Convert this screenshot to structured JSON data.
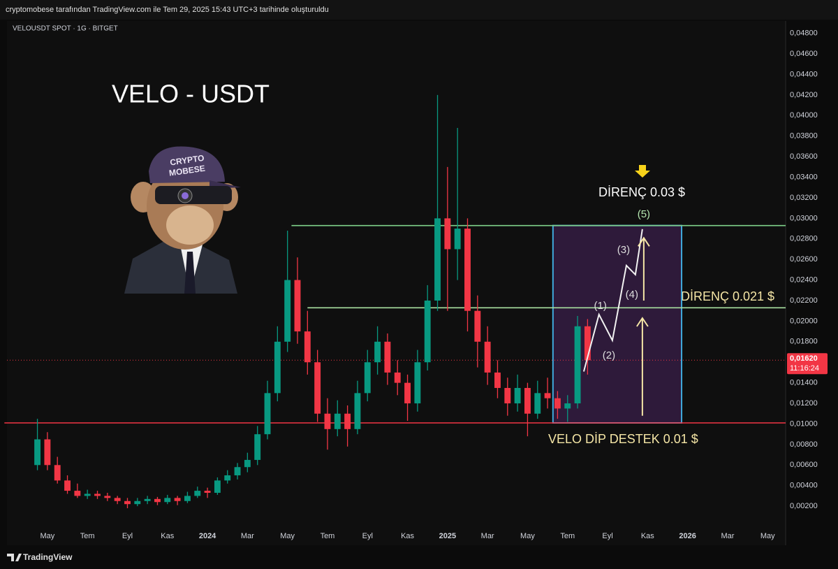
{
  "header": {
    "attribution": "cryptomobese tarafından TradingView.com ile Tem 29, 2025 15:43 UTC+3 tarihinde oluşturuldu",
    "symbol": "VELOUSDT SPOT · 1G · BITGET",
    "logo": "TradingView"
  },
  "chart_data": {
    "type": "candlestick",
    "title": "VELO - USDT",
    "x": [
      3.5,
      4,
      4.5,
      5,
      5.5,
      6,
      6.5,
      7,
      7.5,
      8,
      8.5,
      9,
      9.5,
      10,
      10.5,
      11,
      11.5,
      12,
      12.5,
      13,
      13.5,
      14,
      14.5,
      15,
      15.5,
      16,
      16.5,
      17,
      17.5,
      18,
      18.5,
      19,
      19.5,
      20,
      20.5,
      21,
      21.5,
      22,
      22.5,
      23,
      23.5,
      24,
      24.5,
      25,
      25.5,
      26,
      26.5,
      27,
      27.5,
      28,
      28.5,
      29,
      29.5,
      30,
      30.5,
      31
    ],
    "open": [
      0.006,
      0.0085,
      0.006,
      0.0045,
      0.0035,
      0.003,
      0.0032,
      0.003,
      0.0028,
      0.0025,
      0.0022,
      0.0025,
      0.0027,
      0.0024,
      0.0028,
      0.0025,
      0.003,
      0.0035,
      0.0033,
      0.0045,
      0.005,
      0.0058,
      0.0065,
      0.009,
      0.013,
      0.018,
      0.024,
      0.019,
      0.016,
      0.011,
      0.0095,
      0.011,
      0.0095,
      0.013,
      0.016,
      0.018,
      0.015,
      0.014,
      0.012,
      0.016,
      0.022,
      0.03,
      0.027,
      0.029,
      0.021,
      0.018,
      0.015,
      0.0135,
      0.012,
      0.0135,
      0.011,
      0.013,
      0.0125,
      0.0115,
      0.012,
      0.0195
    ],
    "high": [
      0.0105,
      0.0092,
      0.0068,
      0.005,
      0.0042,
      0.0036,
      0.0035,
      0.0033,
      0.003,
      0.0028,
      0.0028,
      0.003,
      0.0029,
      0.0031,
      0.003,
      0.0034,
      0.0039,
      0.0038,
      0.0048,
      0.0055,
      0.0062,
      0.0072,
      0.0098,
      0.0142,
      0.0195,
      0.0288,
      0.0262,
      0.021,
      0.0172,
      0.0125,
      0.0123,
      0.0118,
      0.0142,
      0.0172,
      0.0195,
      0.0188,
      0.0162,
      0.0148,
      0.0172,
      0.0235,
      0.042,
      0.035,
      0.0388,
      0.03,
      0.0225,
      0.0195,
      0.0162,
      0.0145,
      0.0148,
      0.014,
      0.0142,
      0.0145,
      0.0132,
      0.0128,
      0.0205,
      0.0202
    ],
    "low": [
      0.0055,
      0.0055,
      0.0042,
      0.0032,
      0.0028,
      0.0027,
      0.0027,
      0.0025,
      0.0022,
      0.0018,
      0.002,
      0.0022,
      0.0021,
      0.0022,
      0.0021,
      0.0023,
      0.0028,
      0.0028,
      0.0031,
      0.0042,
      0.0046,
      0.0053,
      0.006,
      0.0085,
      0.0122,
      0.017,
      0.0178,
      0.0148,
      0.0102,
      0.0075,
      0.0088,
      0.0078,
      0.009,
      0.0122,
      0.0148,
      0.0138,
      0.0128,
      0.0103,
      0.0112,
      0.0152,
      0.021,
      0.021,
      0.024,
      0.019,
      0.0155,
      0.0138,
      0.0125,
      0.0108,
      0.0112,
      0.0088,
      0.0105,
      0.0115,
      0.0105,
      0.0102,
      0.0115,
      0.0148
    ],
    "close": [
      0.0085,
      0.006,
      0.0045,
      0.0035,
      0.003,
      0.0032,
      0.003,
      0.0028,
      0.0025,
      0.0022,
      0.0025,
      0.0027,
      0.0024,
      0.0028,
      0.0025,
      0.003,
      0.0035,
      0.0033,
      0.0045,
      0.005,
      0.0058,
      0.0065,
      0.009,
      0.013,
      0.018,
      0.024,
      0.019,
      0.016,
      0.011,
      0.0095,
      0.011,
      0.0095,
      0.013,
      0.016,
      0.018,
      0.015,
      0.014,
      0.012,
      0.016,
      0.022,
      0.03,
      0.027,
      0.029,
      0.021,
      0.018,
      0.015,
      0.0135,
      0.012,
      0.0135,
      0.011,
      0.013,
      0.0125,
      0.0115,
      0.012,
      0.0195,
      0.0162
    ],
    "up_color": "#089981",
    "down_color": "#f23645",
    "xlim": [
      1.63,
      40.9
    ],
    "xticks": [
      {
        "value": 4,
        "label": "May"
      },
      {
        "value": 6,
        "label": "Tem"
      },
      {
        "value": 8,
        "label": "Eyl"
      },
      {
        "value": 10,
        "label": "Kas"
      },
      {
        "value": 12,
        "label": "2024"
      },
      {
        "value": 14,
        "label": "Mar"
      },
      {
        "value": 16,
        "label": "May"
      },
      {
        "value": 18,
        "label": "Tem"
      },
      {
        "value": 20,
        "label": "Eyl"
      },
      {
        "value": 22,
        "label": "Kas"
      },
      {
        "value": 24,
        "label": "2025"
      },
      {
        "value": 26,
        "label": "Mar"
      },
      {
        "value": 28,
        "label": "May"
      },
      {
        "value": 30,
        "label": "Tem"
      },
      {
        "value": 32,
        "label": "Eyl"
      },
      {
        "value": 34,
        "label": "Kas"
      },
      {
        "value": 36,
        "label": "2026"
      },
      {
        "value": 38,
        "label": "Mar"
      },
      {
        "value": 40,
        "label": "May"
      }
    ],
    "ylim": [
      -0.0001,
      0.0492
    ],
    "yticks": [
      {
        "value": 0.002,
        "label": "0,00200"
      },
      {
        "value": 0.004,
        "label": "0,00400"
      },
      {
        "value": 0.006,
        "label": "0,00600"
      },
      {
        "value": 0.008,
        "label": "0,00800"
      },
      {
        "value": 0.01,
        "label": "0,01000"
      },
      {
        "value": 0.012,
        "label": "0,01200"
      },
      {
        "value": 0.014,
        "label": "0,01400"
      },
      {
        "value": 0.018,
        "label": "0,01800"
      },
      {
        "value": 0.02,
        "label": "0,02000"
      },
      {
        "value": 0.022,
        "label": "0,02200"
      },
      {
        "value": 0.024,
        "label": "0,02400"
      },
      {
        "value": 0.026,
        "label": "0,02600"
      },
      {
        "value": 0.028,
        "label": "0,02800"
      },
      {
        "value": 0.03,
        "label": "0,03000"
      },
      {
        "value": 0.032,
        "label": "0,03200"
      },
      {
        "value": 0.034,
        "label": "0,03400"
      },
      {
        "value": 0.036,
        "label": "0,03600"
      },
      {
        "value": 0.038,
        "label": "0,03800"
      },
      {
        "value": 0.04,
        "label": "0,04000"
      },
      {
        "value": 0.042,
        "label": "0,04200"
      },
      {
        "value": 0.044,
        "label": "0,04400"
      },
      {
        "value": 0.046,
        "label": "0,04600"
      },
      {
        "value": 0.048,
        "label": "0,04800"
      }
    ],
    "grid": false,
    "last_price": {
      "value": 0.0162,
      "label": "0,01620"
    },
    "countdown": "11:16:24",
    "levels": [
      {
        "value": 0.0101,
        "x_start": 1.85,
        "color": "#f23645"
      },
      {
        "value": 0.0293,
        "x_start": 16.2,
        "color": "#7fd18a"
      },
      {
        "value": 0.0213,
        "x_start": 17.0,
        "color": "#a8e0a0"
      }
    ],
    "zone": {
      "x": [
        29.27,
        35.7
      ],
      "y": [
        0.0101,
        0.0293
      ],
      "color": "#3fa9dc",
      "fill": "#3a1f4a"
    },
    "wave": {
      "x": [
        30.81,
        31.57,
        32.24,
        32.94,
        33.39,
        33.74
      ],
      "y": [
        0.0151,
        0.02065,
        0.01813,
        0.02541,
        0.02452,
        0.02895
      ],
      "labels": [
        "(1)",
        "(2)",
        "(3)",
        "(4)",
        "(5)"
      ],
      "color": "#f2f2f2"
    },
    "arrows": [
      {
        "x": 33.74,
        "y": [
          0.0108,
          0.0203
        ],
        "color": "#f5e6a6"
      },
      {
        "x": 33.81,
        "y": [
          0.022,
          0.0281
        ],
        "color": "#f5e6a6"
      }
    ],
    "annotations": [
      "DİRENÇ 0.03 $",
      "DİRENÇ 0.021 $",
      "VELO DİP DESTEK 0.01 $"
    ],
    "avatar_text": [
      "CRYPTO",
      "MOBESE"
    ]
  }
}
